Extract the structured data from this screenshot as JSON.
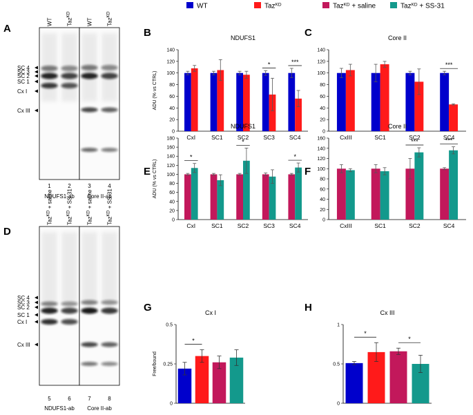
{
  "legend": [
    {
      "label": "WT",
      "color": "#0000cc"
    },
    {
      "label": "Taz",
      "sup": "KD",
      "suffix": "",
      "color": "#ff1a1a"
    },
    {
      "label": "Taz",
      "sup": "KD",
      "suffix": " + saline",
      "color": "#c2185b"
    },
    {
      "label": "Taz",
      "sup": "KD",
      "suffix": " + SS-31",
      "color": "#13998c"
    }
  ],
  "blots": {
    "A": {
      "panel_label": "A",
      "lane_headers_top": [
        {
          "text": "WT",
          "sup": ""
        },
        {
          "text": "Taz",
          "sup": "KD"
        },
        {
          "text": "WT",
          "sup": ""
        },
        {
          "text": "Taz",
          "sup": "KD"
        }
      ],
      "band_labels": [
        "SC 4",
        "SC 3",
        "SC 2",
        "SC 1",
        "Cx I",
        "Cx III"
      ],
      "lane_numbers": [
        "1",
        "2",
        "3",
        "4"
      ],
      "antibodies": [
        "NDUFS1-ab",
        "Core II-ab"
      ]
    },
    "D": {
      "panel_label": "D",
      "lane_headers_top": [
        {
          "text": "Taz",
          "sup": "KD",
          "suffix": " + saline"
        },
        {
          "text": "Taz",
          "sup": "KD",
          "suffix": " + SS-31"
        },
        {
          "text": "Taz",
          "sup": "KD",
          "suffix": " + saline"
        },
        {
          "text": "Taz",
          "sup": "KD",
          "suffix": " + SS-31"
        }
      ],
      "band_labels": [
        "SC 4",
        "SC 3",
        "SC 2",
        "SC 1",
        "Cx I",
        "Cx III"
      ],
      "lane_numbers": [
        "5",
        "6",
        "7",
        "8"
      ],
      "antibodies": [
        "NDUFS1-ab",
        "Core II-ab"
      ]
    }
  },
  "chart_data": [
    {
      "panel": "B",
      "type": "bar",
      "title": "NDUFS1",
      "ylabel": "ADU (% vs CTRL)",
      "ylim": [
        0,
        140
      ],
      "yticks": [
        0,
        20,
        40,
        60,
        80,
        100,
        120,
        140
      ],
      "categories": [
        "CxI",
        "SC1",
        "SC2",
        "SC3",
        "SC4"
      ],
      "series": [
        {
          "name": "WT",
          "color": "#0000cc",
          "values": [
            100,
            100,
            100,
            100,
            100
          ],
          "errors": [
            3,
            3,
            3,
            4,
            8
          ]
        },
        {
          "name": "TazKD",
          "color": "#ff1a1a",
          "values": [
            108,
            105,
            97,
            63,
            56
          ],
          "errors": [
            5,
            18,
            6,
            28,
            14
          ]
        }
      ],
      "significance": [
        {
          "category": "SC3",
          "text": "*"
        },
        {
          "category": "SC4",
          "text": "***"
        }
      ]
    },
    {
      "panel": "C",
      "type": "bar",
      "title": "Core II",
      "ylabel": "",
      "ylim": [
        0,
        140
      ],
      "yticks": [
        0,
        20,
        40,
        60,
        80,
        100,
        120,
        140
      ],
      "categories": [
        "CxIII",
        "SC1",
        "SC2",
        "SC4"
      ],
      "series": [
        {
          "name": "WT",
          "color": "#0000cc",
          "values": [
            100,
            100,
            100,
            100
          ],
          "errors": [
            8,
            15,
            3,
            3
          ]
        },
        {
          "name": "TazKD",
          "color": "#ff1a1a",
          "values": [
            105,
            115,
            85,
            46
          ],
          "errors": [
            10,
            5,
            22,
            1
          ]
        }
      ],
      "significance": [
        {
          "category": "SC4",
          "text": "***"
        }
      ]
    },
    {
      "panel": "E",
      "type": "bar",
      "title": "NDUFS1",
      "ylabel": "ADU (% vs CTRL)",
      "ylim": [
        0,
        180
      ],
      "yticks": [
        0,
        20,
        40,
        60,
        80,
        100,
        120,
        140,
        160,
        180
      ],
      "categories": [
        "CxI",
        "SC1",
        "SC2",
        "SC3",
        "SC4"
      ],
      "series": [
        {
          "name": "TazKD + saline",
          "color": "#c2185b",
          "values": [
            100,
            100,
            100,
            100,
            100
          ],
          "errors": [
            2,
            2,
            2,
            3,
            2
          ]
        },
        {
          "name": "TazKD + SS-31",
          "color": "#13998c",
          "values": [
            114,
            87,
            130,
            95,
            115
          ],
          "errors": [
            10,
            12,
            28,
            15,
            10
          ]
        }
      ],
      "significance": [
        {
          "category": "CxI",
          "text": "*"
        },
        {
          "category": "SC2",
          "text": "*"
        },
        {
          "category": "SC4",
          "text": "*"
        }
      ]
    },
    {
      "panel": "F",
      "type": "bar",
      "title": "Core II",
      "ylabel": "",
      "ylim": [
        0,
        160
      ],
      "yticks": [
        0,
        20,
        40,
        60,
        80,
        100,
        120,
        140,
        160
      ],
      "categories": [
        "CxIII",
        "SC1",
        "SC2",
        "SC4"
      ],
      "series": [
        {
          "name": "TazKD + saline",
          "color": "#c2185b",
          "values": [
            100,
            100,
            100,
            100
          ],
          "errors": [
            8,
            8,
            20,
            2
          ]
        },
        {
          "name": "TazKD + SS-31",
          "color": "#13998c",
          "values": [
            97,
            95,
            132,
            136
          ],
          "errors": [
            3,
            7,
            9,
            7
          ]
        }
      ],
      "significance": [
        {
          "category": "SC2",
          "text": "***"
        },
        {
          "category": "SC4",
          "text": "***"
        }
      ]
    },
    {
      "panel": "G",
      "type": "bar",
      "title": "Cx I",
      "ylabel": "Free/bound",
      "ylim": [
        0,
        0.5
      ],
      "yticks": [
        0,
        0.25,
        0.5
      ],
      "ytick_labels": [
        "0",
        "0.25",
        "0.5"
      ],
      "categories": [
        "WT",
        "TazKD",
        "TazKD + saline",
        "TazKD + SS-31"
      ],
      "values": [
        0.22,
        0.3,
        0.26,
        0.29
      ],
      "errors": [
        0.04,
        0.04,
        0.04,
        0.05
      ],
      "colors": [
        "#0000cc",
        "#ff1a1a",
        "#c2185b",
        "#13998c"
      ],
      "significance": [
        {
          "from": 0,
          "to": 1,
          "text": "*"
        }
      ]
    },
    {
      "panel": "H",
      "type": "bar",
      "title": "Cx III",
      "ylabel": "",
      "ylim": [
        0,
        1
      ],
      "yticks": [
        0,
        0.5,
        1
      ],
      "ytick_labels": [
        "0",
        "0.5",
        "1"
      ],
      "categories": [
        "WT",
        "TazKD",
        "TazKD + saline",
        "TazKD + SS-31"
      ],
      "values": [
        0.51,
        0.65,
        0.66,
        0.5
      ],
      "errors": [
        0.02,
        0.12,
        0.04,
        0.11
      ],
      "colors": [
        "#0000cc",
        "#ff1a1a",
        "#c2185b",
        "#13998c"
      ],
      "significance": [
        {
          "from": 0,
          "to": 1,
          "text": "*"
        },
        {
          "from": 2,
          "to": 3,
          "text": "*"
        }
      ]
    }
  ]
}
